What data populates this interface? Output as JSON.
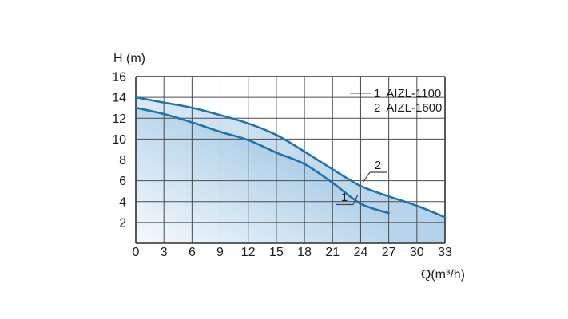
{
  "page": {
    "background": "#ffffff"
  },
  "chart_data": {
    "type": "line",
    "title": "",
    "xlabel": "Q(m³/h)",
    "ylabel": "H (m)",
    "xlim": [
      0,
      33
    ],
    "ylim": [
      0,
      16
    ],
    "x_ticks": [
      0,
      3,
      6,
      9,
      12,
      15,
      18,
      21,
      24,
      27,
      30,
      33
    ],
    "y_ticks": [
      2,
      4,
      6,
      8,
      10,
      12,
      14,
      16
    ],
    "grid": true,
    "legend_position": "top-right-inside",
    "series": [
      {
        "id": "1",
        "name": "AIZL-1100",
        "x": [
          0,
          3,
          6,
          9,
          12,
          15,
          18,
          21,
          24,
          27
        ],
        "y": [
          13.0,
          12.4,
          11.6,
          10.7,
          9.9,
          8.7,
          7.6,
          5.8,
          3.8,
          2.9
        ],
        "color": "#2273ab",
        "area": true
      },
      {
        "id": "2",
        "name": "AIZL-1600",
        "x": [
          0,
          3,
          6,
          9,
          12,
          15,
          18,
          21,
          24,
          27,
          30,
          33
        ],
        "y": [
          14.0,
          13.5,
          13.0,
          12.3,
          11.5,
          10.4,
          8.8,
          7.1,
          5.5,
          4.5,
          3.6,
          2.5
        ],
        "color": "#2273ab",
        "area": true
      }
    ],
    "style": {
      "line_color": "#2273ab",
      "grid_color": "#4c4c4c",
      "border_color": "#2f2f2f",
      "text_color": "#1c1c1c",
      "area1_gradient_start": "#f6fafd",
      "area1_gradient_mid": "#b7d5eb",
      "area1_gradient_end": "#7cb0d7",
      "area2_gradient_start": "#d9e9f5",
      "area2_gradient_end": "#b2d1ea",
      "background": "#ffffff"
    }
  }
}
